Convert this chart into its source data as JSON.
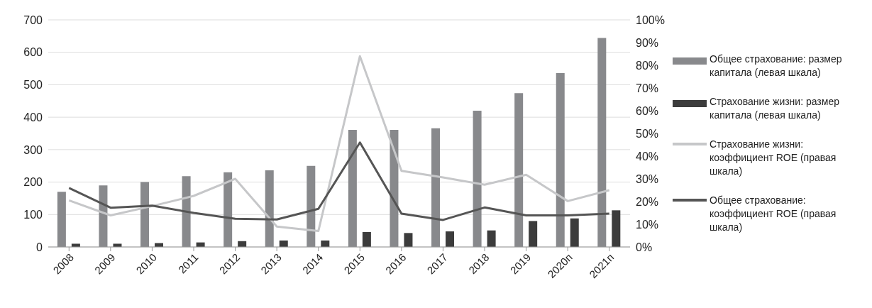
{
  "chart_data": {
    "type": "bar",
    "categories": [
      "2008",
      "2009",
      "2010",
      "2011",
      "2012",
      "2013",
      "2014",
      "2015",
      "2016",
      "2017",
      "2018",
      "2019",
      "2020п",
      "2021п"
    ],
    "series": [
      {
        "name": "Общее страхование: размер капитала (левая шкала)",
        "color": "#88898c",
        "values": [
          170,
          190,
          200,
          218,
          230,
          236,
          250,
          361,
          361,
          366,
          420,
          474,
          536,
          644
        ]
      },
      {
        "name": "Страхование жизни: размер капитала (левая шкала)",
        "color": "#3c3c3c",
        "values": [
          10,
          10,
          12,
          14,
          18,
          20,
          20,
          46,
          43,
          48,
          51,
          80,
          88,
          113
        ]
      },
      {
        "name": "Страхование жизни: коэффициент ROE (правая шкала)",
        "type": "line",
        "axis": "y2",
        "color": "#c6c7c9",
        "values": [
          20.5,
          13.9,
          18,
          22.5,
          30,
          9,
          7,
          84,
          33.5,
          30.6,
          27.4,
          31.8,
          20.2,
          25
        ]
      },
      {
        "name": "Общее страхование: коэффициент ROE (правая шкала)",
        "type": "line",
        "axis": "y2",
        "color": "#555555",
        "values": [
          26,
          17.3,
          18.2,
          15,
          12.4,
          12.1,
          16.8,
          46,
          14.7,
          11.9,
          17.4,
          13.9,
          13.9,
          14.7
        ]
      }
    ],
    "ylim": [
      0,
      700
    ],
    "yticks": [
      0,
      100,
      200,
      300,
      400,
      500,
      600,
      700
    ],
    "y2lim": [
      0,
      100
    ],
    "y2ticks": [
      {
        "value": 0,
        "label": "0%"
      },
      {
        "value": 10,
        "label": "10%"
      },
      {
        "value": 20,
        "label": "20%"
      },
      {
        "value": 30,
        "label": "30%"
      },
      {
        "value": 40,
        "label": "40%"
      },
      {
        "value": 50,
        "label": "50%"
      },
      {
        "value": 60,
        "label": "60%"
      },
      {
        "value": 70,
        "label": "70%"
      },
      {
        "value": 80,
        "label": "80%"
      },
      {
        "value": 90,
        "label": "90%"
      },
      {
        "value": 100,
        "label": "100%"
      }
    ],
    "grid": "y",
    "legend": "right",
    "marker": "none",
    "line_style": "solid"
  }
}
